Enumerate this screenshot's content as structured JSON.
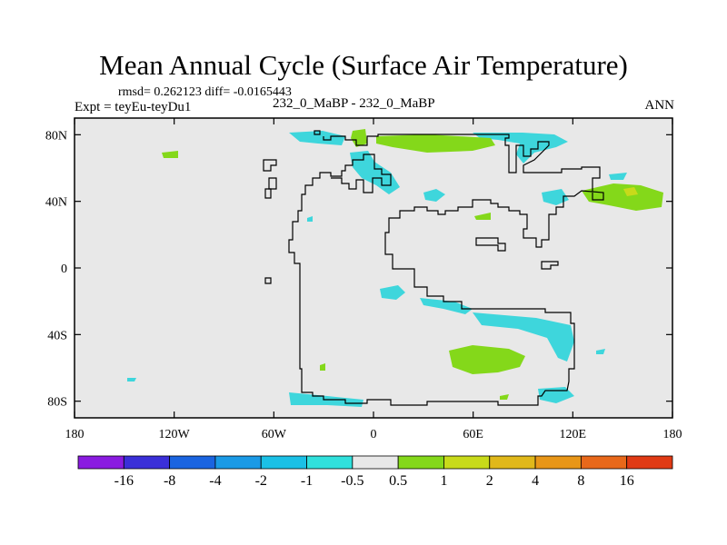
{
  "chart_data": {
    "type": "heatmap",
    "title": "Mean Annual Cycle (Surface Air Temperature)",
    "stats_line": "rmsd= 0.262123 diff= -0.0165443",
    "expt_line": "Expt = teyEu-teyDu1",
    "subtitle": "232_0_MaBP - 232_0_MaBP",
    "season": "ANN",
    "x_ticks": [
      "180",
      "120W",
      "60W",
      "0",
      "60E",
      "120E",
      "180"
    ],
    "y_ticks": [
      "80N",
      "40N",
      "0",
      "40S",
      "80S"
    ],
    "xlim": [
      -180,
      180
    ],
    "ylim": [
      -90,
      90
    ],
    "background_value_range": [
      -0.5,
      0.5
    ],
    "colorbar": {
      "labels": [
        "-16",
        "-8",
        "-4",
        "-2",
        "-1",
        "-0.5",
        "0.5",
        "1",
        "2",
        "4",
        "8",
        "16"
      ],
      "colors": [
        "#8a1be0",
        "#3a2fd8",
        "#1a64e0",
        "#1a9ae6",
        "#1ac0e6",
        "#30e0dc",
        "#e8e8e8",
        "#84d81a",
        "#c8da1a",
        "#e0b81a",
        "#e89618",
        "#e8681a",
        "#e03a14"
      ]
    }
  },
  "colors": {
    "neutral": "#e8e8e8",
    "cyan": "#3ed6dc",
    "green": "#84d81a",
    "yellow": "#c8da1a",
    "coast": "#000000"
  }
}
